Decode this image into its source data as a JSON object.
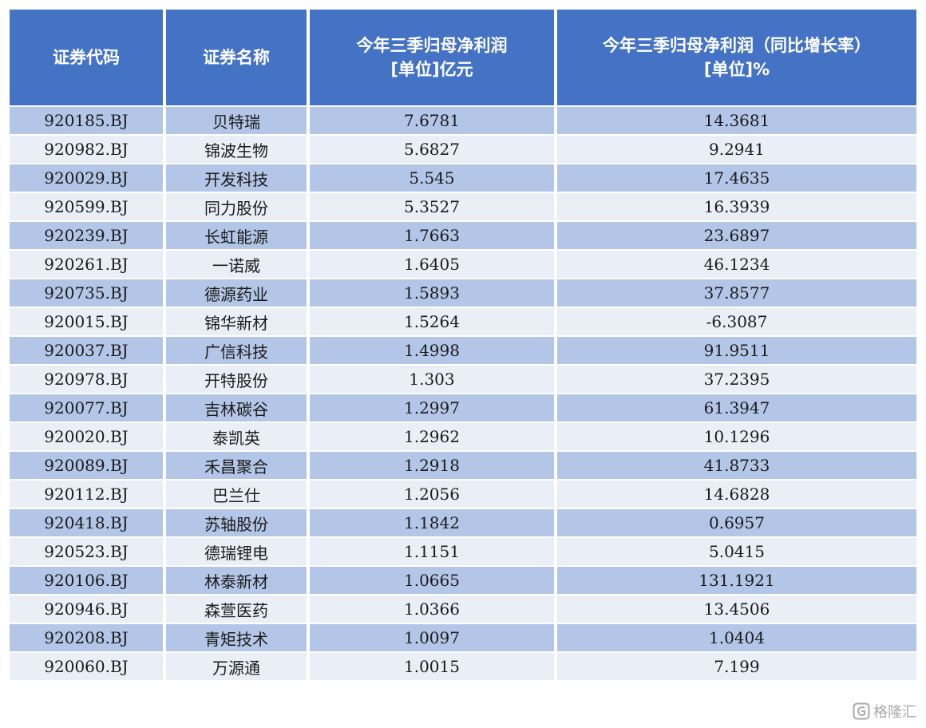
{
  "chart_data": {
    "type": "table",
    "columns": [
      "证券代码",
      "证券名称",
      "今年三季归母净利润 [单位]亿元",
      "今年三季归母净利润（同比增长率） [单位]%"
    ],
    "header_lines": [
      [
        "证券代码"
      ],
      [
        "证券名称"
      ],
      [
        "今年三季归母净利润",
        "[单位]亿元"
      ],
      [
        "今年三季归母净利润（同比增长率）",
        "[单位]%"
      ]
    ],
    "rows": [
      [
        "920185.BJ",
        "贝特瑞",
        "7.6781",
        "14.3681"
      ],
      [
        "920982.BJ",
        "锦波生物",
        "5.6827",
        "9.2941"
      ],
      [
        "920029.BJ",
        "开发科技",
        "5.545",
        "17.4635"
      ],
      [
        "920599.BJ",
        "同力股份",
        "5.3527",
        "16.3939"
      ],
      [
        "920239.BJ",
        "长虹能源",
        "1.7663",
        "23.6897"
      ],
      [
        "920261.BJ",
        "一诺威",
        "1.6405",
        "46.1234"
      ],
      [
        "920735.BJ",
        "德源药业",
        "1.5893",
        "37.8577"
      ],
      [
        "920015.BJ",
        "锦华新材",
        "1.5264",
        "-6.3087"
      ],
      [
        "920037.BJ",
        "广信科技",
        "1.4998",
        "91.9511"
      ],
      [
        "920978.BJ",
        "开特股份",
        "1.303",
        "37.2395"
      ],
      [
        "920077.BJ",
        "吉林碳谷",
        "1.2997",
        "61.3947"
      ],
      [
        "920020.BJ",
        "泰凯英",
        "1.2962",
        "10.1296"
      ],
      [
        "920089.BJ",
        "禾昌聚合",
        "1.2918",
        "41.8733"
      ],
      [
        "920112.BJ",
        "巴兰仕",
        "1.2056",
        "14.6828"
      ],
      [
        "920418.BJ",
        "苏轴股份",
        "1.1842",
        "0.6957"
      ],
      [
        "920523.BJ",
        "德瑞锂电",
        "1.1151",
        "5.0415"
      ],
      [
        "920106.BJ",
        "林泰新材",
        "1.0665",
        "131.1921"
      ],
      [
        "920946.BJ",
        "森萱医药",
        "1.0366",
        "13.4506"
      ],
      [
        "920208.BJ",
        "青矩技术",
        "1.0097",
        "1.0404"
      ],
      [
        "920060.BJ",
        "万源通",
        "1.0015",
        "7.199"
      ]
    ]
  },
  "colors": {
    "header_bg": "#4472c4",
    "header_text": "#ffffff",
    "row_odd": "#b4c6e7",
    "row_even": "#eaeef7"
  },
  "watermark": {
    "text": "格隆汇",
    "icon": "gelonghui-logo-icon"
  }
}
